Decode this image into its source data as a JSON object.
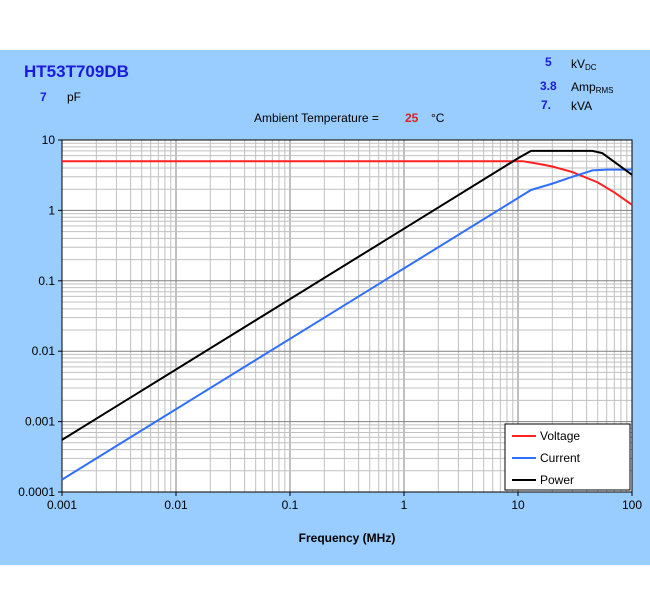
{
  "header": {
    "title": "HT53T709DB",
    "capacitance_value": "7",
    "capacitance_unit": "pF",
    "voltage_value": "5",
    "voltage_unit": "kV",
    "voltage_sub": "DC",
    "current_value": "3.8",
    "current_unit": "Amp",
    "current_sub": "RMS",
    "power_value": "7.",
    "power_unit": "kVA",
    "ambient_label": "Ambient Temperature =",
    "ambient_value": "25",
    "ambient_unit": "°C"
  },
  "chart_data": {
    "type": "line",
    "title": "HT53T709DB",
    "xlabel": "Frequency (MHz)",
    "ylabel": "",
    "xscale": "log",
    "yscale": "log",
    "xlim": [
      0.001,
      100
    ],
    "ylim": [
      0.0001,
      10
    ],
    "grid": true,
    "xticks": [
      "0.001",
      "0.01",
      "0.1",
      "1",
      "10",
      "100"
    ],
    "yticks": [
      "0.0001",
      "0.001",
      "0.01",
      "0.1",
      "1",
      "10"
    ],
    "legend_position": "bottom-right",
    "series": [
      {
        "name": "Voltage",
        "color": "#ff2020",
        "x": [
          0.001,
          10,
          11,
          15,
          20,
          30,
          50,
          70,
          100
        ],
        "y": [
          5,
          5,
          5,
          4.6,
          4.2,
          3.5,
          2.5,
          1.8,
          1.2
        ]
      },
      {
        "name": "Current",
        "color": "#3070ff",
        "x": [
          0.001,
          1,
          10,
          13,
          20,
          30,
          45,
          60,
          100
        ],
        "y": [
          0.00015,
          0.15,
          1.5,
          1.95,
          2.4,
          3,
          3.7,
          3.8,
          3.8
        ]
      },
      {
        "name": "Power",
        "color": "#000000",
        "x": [
          0.001,
          1,
          10,
          13,
          45,
          55,
          100
        ],
        "y": [
          0.00055,
          0.55,
          5.5,
          7,
          7,
          6.5,
          3.2
        ]
      }
    ]
  }
}
